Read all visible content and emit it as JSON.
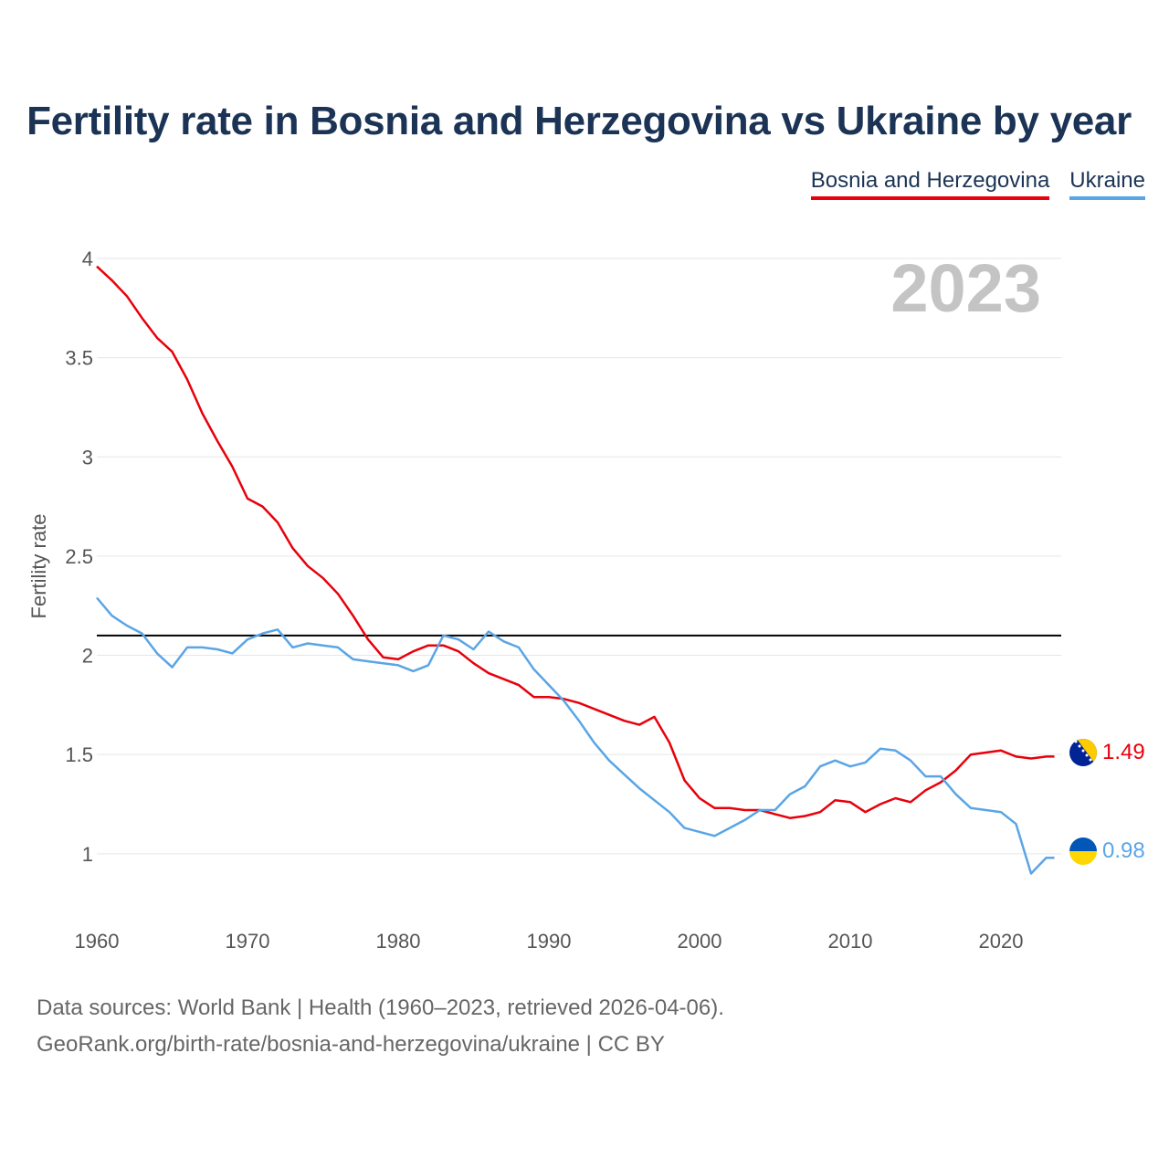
{
  "chart_data": {
    "type": "line",
    "title": "Fertility rate in Bosnia and Herzegovina vs Ukraine by year",
    "ylabel": "Fertility rate",
    "xlabel": "",
    "ylim": [
      0.7,
      4.0
    ],
    "xlim": [
      1960,
      2024
    ],
    "y_ticks": [
      1,
      1.5,
      2,
      2.5,
      3,
      3.5,
      4
    ],
    "y_tick_labels": [
      "1",
      "1.5",
      "2",
      "2.5",
      "3",
      "3.5",
      "4"
    ],
    "x_ticks": [
      1960,
      1970,
      1980,
      1990,
      2000,
      2010,
      2020
    ],
    "x_tick_labels": [
      "1960",
      "1970",
      "1980",
      "1990",
      "2000",
      "2010",
      "2020"
    ],
    "reference_line": 2.1,
    "year_label": "2023",
    "legend_position": "top-right",
    "grid": true,
    "series": [
      {
        "name": "Bosnia and Herzegovina",
        "color": "#e8000b",
        "end_label": "1.49",
        "flag": "bosnia-flag-icon",
        "x": [
          1960,
          1961,
          1962,
          1963,
          1964,
          1965,
          1966,
          1967,
          1968,
          1969,
          1970,
          1971,
          1972,
          1973,
          1974,
          1975,
          1976,
          1977,
          1978,
          1979,
          1980,
          1981,
          1982,
          1983,
          1984,
          1985,
          1986,
          1987,
          1988,
          1989,
          1990,
          1991,
          1992,
          1993,
          1994,
          1995,
          1996,
          1997,
          1998,
          1999,
          2000,
          2001,
          2002,
          2003,
          2004,
          2005,
          2006,
          2007,
          2008,
          2009,
          2010,
          2011,
          2012,
          2013,
          2014,
          2015,
          2016,
          2017,
          2018,
          2019,
          2020,
          2021,
          2022,
          2023
        ],
        "values": [
          3.96,
          3.89,
          3.81,
          3.7,
          3.6,
          3.53,
          3.39,
          3.22,
          3.08,
          2.95,
          2.79,
          2.75,
          2.67,
          2.54,
          2.45,
          2.39,
          2.31,
          2.2,
          2.08,
          1.99,
          1.98,
          2.02,
          2.05,
          2.05,
          2.02,
          1.96,
          1.91,
          1.88,
          1.85,
          1.79,
          1.79,
          1.78,
          1.76,
          1.73,
          1.7,
          1.67,
          1.65,
          1.69,
          1.56,
          1.37,
          1.28,
          1.23,
          1.23,
          1.22,
          1.22,
          1.2,
          1.18,
          1.19,
          1.21,
          1.27,
          1.26,
          1.21,
          1.25,
          1.28,
          1.26,
          1.32,
          1.36,
          1.42,
          1.5,
          1.51,
          1.52,
          1.49,
          1.48,
          1.49
        ]
      },
      {
        "name": "Ukraine",
        "color": "#5aa5e6",
        "end_label": "0.98",
        "flag": "ukraine-flag-icon",
        "x": [
          1960,
          1961,
          1962,
          1963,
          1964,
          1965,
          1966,
          1967,
          1968,
          1969,
          1970,
          1971,
          1972,
          1973,
          1974,
          1975,
          1976,
          1977,
          1978,
          1979,
          1980,
          1981,
          1982,
          1983,
          1984,
          1985,
          1986,
          1987,
          1988,
          1989,
          1990,
          1991,
          1992,
          1993,
          1994,
          1995,
          1996,
          1997,
          1998,
          1999,
          2000,
          2001,
          2002,
          2003,
          2004,
          2005,
          2006,
          2007,
          2008,
          2009,
          2010,
          2011,
          2012,
          2013,
          2014,
          2015,
          2016,
          2017,
          2018,
          2019,
          2020,
          2021,
          2022,
          2023
        ],
        "values": [
          2.29,
          2.2,
          2.15,
          2.11,
          2.01,
          1.94,
          2.04,
          2.04,
          2.03,
          2.01,
          2.08,
          2.11,
          2.13,
          2.04,
          2.06,
          2.05,
          2.04,
          1.98,
          1.97,
          1.96,
          1.95,
          1.92,
          1.95,
          2.1,
          2.08,
          2.03,
          2.12,
          2.07,
          2.04,
          1.93,
          1.85,
          1.77,
          1.67,
          1.56,
          1.47,
          1.4,
          1.33,
          1.27,
          1.21,
          1.13,
          1.11,
          1.09,
          1.13,
          1.17,
          1.22,
          1.22,
          1.3,
          1.34,
          1.44,
          1.47,
          1.44,
          1.46,
          1.53,
          1.52,
          1.47,
          1.39,
          1.39,
          1.3,
          1.23,
          1.22,
          1.21,
          1.15,
          0.9,
          0.98
        ]
      }
    ]
  },
  "footer": {
    "line1": "Data sources: World Bank | Health (1960–2023, retrieved 2026-04-06).",
    "line2": "GeoRank.org/birth-rate/bosnia-and-herzegovina/ukraine | CC BY"
  }
}
